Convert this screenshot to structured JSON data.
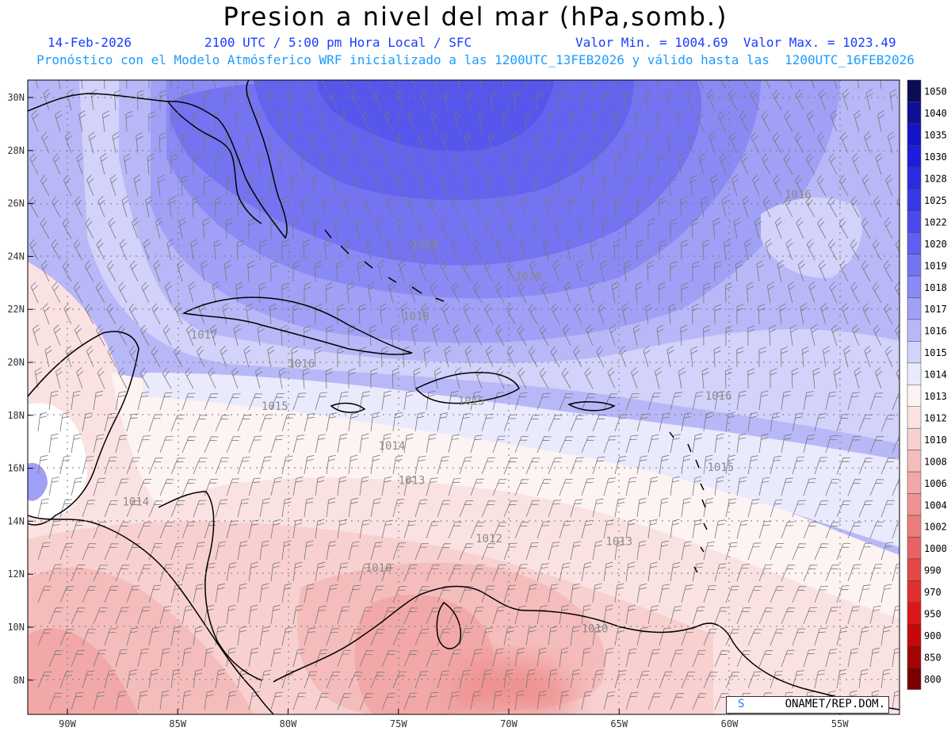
{
  "header": {
    "title": "Presion a nivel del mar (hPa,somb.)",
    "date": "14-Feb-2026",
    "time": "2100 UTC / 5:00 pm Hora Local / SFC",
    "min_max": "Valor Min. = 1004.69  Valor Max. = 1023.49",
    "forecast_note": "Pronóstico con el Modelo Atmósferico WRF inicializado a las 1200UTC_13FEB2026 y válido hasta las  1200UTC_16FEB2026"
  },
  "map": {
    "lon_labels": [
      "90W",
      "85W",
      "80W",
      "75W",
      "70W",
      "65W",
      "60W",
      "55W"
    ],
    "lat_labels": [
      "30N",
      "28N",
      "26N",
      "24N",
      "22N",
      "20N",
      "18N",
      "16N",
      "14N",
      "12N",
      "10N",
      "8N"
    ],
    "isobar_labels": [
      {
        "text": "1020",
        "lon": -73.8,
        "lat": 24.3
      },
      {
        "text": "1019",
        "lon": -69.1,
        "lat": 23.1
      },
      {
        "text": "1018",
        "lon": -74.2,
        "lat": 21.6
      },
      {
        "text": "1017",
        "lon": -83.8,
        "lat": 20.9
      },
      {
        "text": "1016",
        "lon": -79.4,
        "lat": 19.8
      },
      {
        "text": "1016",
        "lon": -60.5,
        "lat": 18.6
      },
      {
        "text": "1016",
        "lon": -56.9,
        "lat": 26.2
      },
      {
        "text": "1015",
        "lon": -80.6,
        "lat": 18.2
      },
      {
        "text": "1015",
        "lon": -71.7,
        "lat": 18.4
      },
      {
        "text": "1015",
        "lon": -60.4,
        "lat": 15.9
      },
      {
        "text": "1014",
        "lon": -75.3,
        "lat": 16.7
      },
      {
        "text": "1014",
        "lon": -86.9,
        "lat": 14.6
      },
      {
        "text": "1013",
        "lon": -74.4,
        "lat": 15.4
      },
      {
        "text": "1013",
        "lon": -65.0,
        "lat": 13.1
      },
      {
        "text": "1012",
        "lon": -70.9,
        "lat": 13.2
      },
      {
        "text": "1010",
        "lon": -75.9,
        "lat": 12.1
      },
      {
        "text": "1010",
        "lon": -66.1,
        "lat": 9.8
      }
    ],
    "credit_symbol": "S",
    "credit_text": "ONAMET/REP.DOM."
  },
  "colorbar": {
    "levels": [
      "1050",
      "1040",
      "1035",
      "1030",
      "1028",
      "1025",
      "1022",
      "1020",
      "1019",
      "1018",
      "1017",
      "1016",
      "1015",
      "1014",
      "1013",
      "1012",
      "1010",
      "1008",
      "1006",
      "1004",
      "1002",
      "1000",
      "990",
      "970",
      "950",
      "900",
      "850",
      "800"
    ],
    "colors": [
      "#0b0b56",
      "#0f0f98",
      "#1313c8",
      "#1d1ddb",
      "#2b2be0",
      "#3838e6",
      "#4b4bec",
      "#5f5ff0",
      "#7474f2",
      "#8a8af4",
      "#a0a0f6",
      "#b8b8f8",
      "#d2d2fa",
      "#eaeafd",
      "#fdf3f3",
      "#fbe2e2",
      "#f8d0d0",
      "#f5bcbc",
      "#f2a8a8",
      "#ef9292",
      "#ec7c7c",
      "#e86464",
      "#e44848",
      "#e03030",
      "#dc1818",
      "#c80808",
      "#a40404",
      "#7a0000"
    ]
  }
}
